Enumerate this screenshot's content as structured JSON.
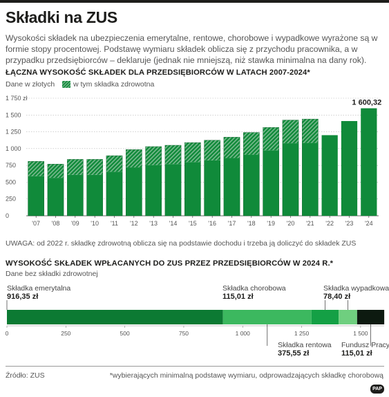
{
  "title": "Składki na ZUS",
  "intro": "Wysokości składek na ubezpieczenia emerytalne, rentowe, chorobowe i wypadkowe wyrażone są w formie stopy procentowej. Podstawę wymiaru składek oblicza się z przychodu pracownika, a w przypadku przedsiębiorców – deklaruje (jednak nie mniejszą, niż stawka minimalna na dany rok).",
  "colors": {
    "bar_main": "#108a3a",
    "bar_hatch": "#7ab98f",
    "seg": [
      "#0c7a33",
      "#14a045",
      "#3cb85f",
      "#6fcf7f",
      "#1e4d2b",
      "#0d1a10"
    ]
  },
  "section1": {
    "title": "ŁĄCZNA WYSOKOŚĆ SKŁADEK DLA PRZEDSIĘBIORCÓW W LATACH 2007-2024*",
    "unit_note": "Dane w złotych",
    "legend_label": "w tym składka zdrowotna",
    "note": "UWAGA: od 2022 r. składkę zdrowotną oblicza się na podstawie dochodu i trzeba ją doliczyć do składek ZUS"
  },
  "section2": {
    "title": "WYSOKOŚĆ SKŁADEK WPŁACANYCH DO ZUS PRZEZ PRZEDSIĘBIORCÓW W 2024 R.*",
    "subtitle": "Dane bez składki zdrowotnej"
  },
  "chart_data": [
    {
      "type": "bar",
      "stacked": true,
      "categories": [
        "'07",
        "'08",
        "'09",
        "'10",
        "'11",
        "'12",
        "'13",
        "'14",
        "'15",
        "'16",
        "'17",
        "'18",
        "'19",
        "'20",
        "'21",
        "'22",
        "'23",
        "'24"
      ],
      "series": [
        {
          "name": "",
          "values": [
            590,
            565,
            610,
            610,
            655,
            720,
            755,
            770,
            800,
            825,
            860,
            910,
            975,
            1080,
            1085,
            1200,
            1410,
            1600.32
          ]
        },
        {
          "name": "w tym składka zdrowotna",
          "values": [
            220,
            205,
            230,
            230,
            240,
            265,
            275,
            280,
            290,
            300,
            310,
            330,
            340,
            345,
            355,
            0,
            0,
            0
          ]
        }
      ],
      "data_labels": [
        {
          "category": "'24",
          "text": "1 600,32"
        }
      ],
      "ylim": [
        0,
        1750
      ],
      "yticks": [
        0,
        250,
        500,
        750,
        1000,
        1250,
        1500,
        1750
      ],
      "ytick_labels": [
        "0",
        "250",
        "500",
        "750",
        "1 000",
        "1 250",
        "1 500",
        "1 750 zł"
      ],
      "grid": true
    },
    {
      "type": "bar",
      "orientation": "horizontal-stacked",
      "segments": [
        {
          "name": "Składka emerytalna",
          "value": 916.35,
          "label": "916,35 zł"
        },
        {
          "name": "Składka rentowa",
          "value": 375.55,
          "label": "375,55 zł"
        },
        {
          "name": "Składka chorobowa",
          "value": 115.01,
          "label": "115,01 zł"
        },
        {
          "name": "Składka wypadkowa",
          "value": 78.4,
          "label": "78,40 zł"
        },
        {
          "name": "Fundusz Pracy",
          "value": 115.01,
          "label": "115,01 zł"
        }
      ],
      "xlim": [
        0,
        1600
      ],
      "xticks": [
        0,
        250,
        500,
        750,
        1000,
        1250,
        1500
      ],
      "xtick_labels": [
        "0",
        "250",
        "500",
        "750",
        "1 000",
        "1 250",
        "1 500"
      ]
    }
  ],
  "footer": {
    "source": "Źródło: ZUS",
    "footnote": "*wybierających minimalną podstawę wymiaru, odprowadzających składkę chorobową",
    "logo": "PAP"
  }
}
